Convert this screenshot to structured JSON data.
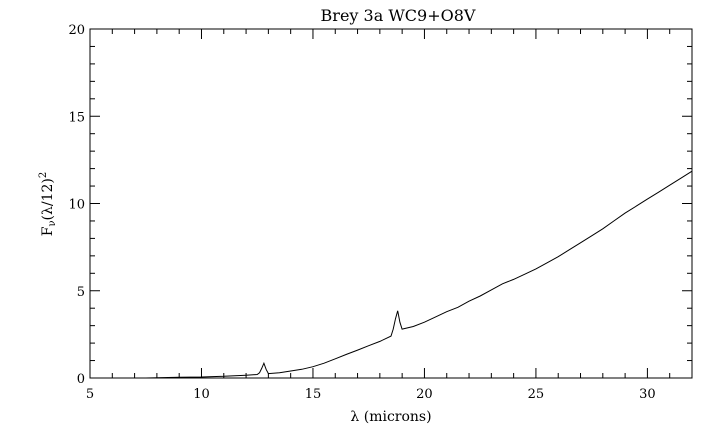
{
  "chart_data": {
    "type": "line",
    "title": "Brey 3a WC9+O8V",
    "xlabel": "λ (microns)",
    "ylabel_main": "F",
    "ylabel_sub": "ν",
    "ylabel_rest": "(λ/12)",
    "ylabel_sup": "2",
    "xlim": [
      5,
      32
    ],
    "ylim": [
      0,
      20
    ],
    "x_ticks": [
      5,
      10,
      15,
      20,
      25,
      30
    ],
    "x_tick_labels": [
      "5",
      "10",
      "15",
      "20",
      "25",
      "30"
    ],
    "y_ticks": [
      0,
      5,
      10,
      15,
      20
    ],
    "y_tick_labels": [
      "0",
      "5",
      "10",
      "15",
      "20"
    ],
    "x_minor_step": 1,
    "y_minor_step": 1,
    "grid": false,
    "legend": "none",
    "series": [
      {
        "points": [
          [
            7.5,
            0.0
          ],
          [
            8.0,
            0.02
          ],
          [
            8.5,
            0.03
          ],
          [
            9.0,
            0.04
          ],
          [
            9.5,
            0.05
          ],
          [
            10.0,
            0.06
          ],
          [
            10.5,
            0.08
          ],
          [
            11.0,
            0.1
          ],
          [
            11.5,
            0.13
          ],
          [
            12.0,
            0.16
          ],
          [
            12.5,
            0.2
          ],
          [
            12.6,
            0.3
          ],
          [
            12.7,
            0.55
          ],
          [
            12.8,
            0.85
          ],
          [
            12.9,
            0.5
          ],
          [
            13.0,
            0.25
          ],
          [
            13.5,
            0.3
          ],
          [
            14.0,
            0.4
          ],
          [
            14.5,
            0.5
          ],
          [
            15.0,
            0.65
          ],
          [
            15.5,
            0.85
          ],
          [
            16.0,
            1.1
          ],
          [
            16.5,
            1.35
          ],
          [
            17.0,
            1.6
          ],
          [
            17.5,
            1.85
          ],
          [
            18.0,
            2.1
          ],
          [
            18.5,
            2.4
          ],
          [
            18.6,
            2.8
          ],
          [
            18.7,
            3.4
          ],
          [
            18.8,
            3.85
          ],
          [
            18.9,
            3.2
          ],
          [
            19.0,
            2.8
          ],
          [
            19.5,
            2.95
          ],
          [
            20.0,
            3.2
          ],
          [
            20.5,
            3.5
          ],
          [
            21.0,
            3.8
          ],
          [
            21.5,
            4.05
          ],
          [
            22.0,
            4.4
          ],
          [
            22.5,
            4.7
          ],
          [
            23.0,
            5.05
          ],
          [
            23.5,
            5.4
          ],
          [
            24.0,
            5.65
          ],
          [
            24.5,
            5.95
          ],
          [
            25.0,
            6.25
          ],
          [
            25.5,
            6.6
          ],
          [
            26.0,
            6.95
          ],
          [
            26.5,
            7.35
          ],
          [
            27.0,
            7.75
          ],
          [
            27.5,
            8.15
          ],
          [
            28.0,
            8.55
          ],
          [
            28.5,
            9.0
          ],
          [
            29.0,
            9.45
          ],
          [
            29.5,
            9.85
          ],
          [
            30.0,
            10.25
          ],
          [
            30.5,
            10.65
          ],
          [
            31.0,
            11.05
          ],
          [
            31.5,
            11.45
          ],
          [
            32.0,
            11.85
          ]
        ]
      }
    ]
  }
}
